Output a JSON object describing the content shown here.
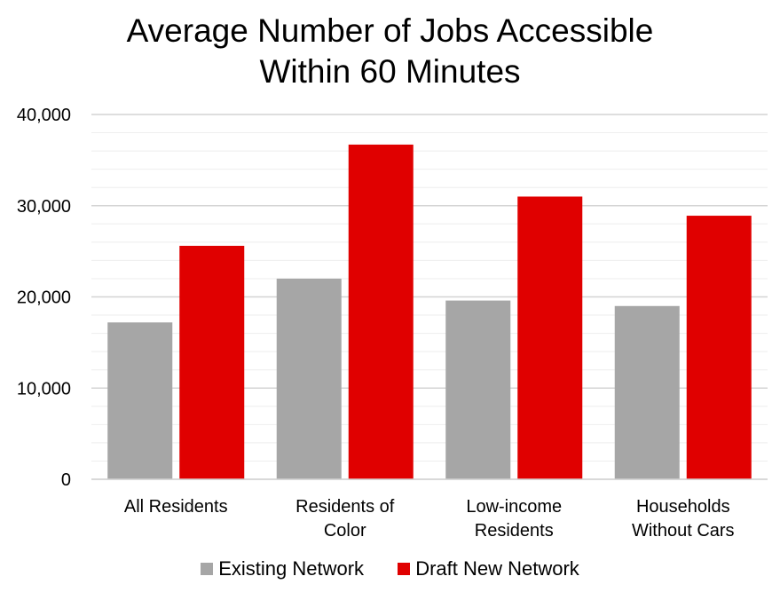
{
  "chart_data": {
    "type": "bar",
    "title": [
      "Average Number of Jobs Accessible",
      "Within 60 Minutes"
    ],
    "categories": [
      [
        "All Residents"
      ],
      [
        "Residents of",
        "Color"
      ],
      [
        "Low-income",
        "Residents"
      ],
      [
        "Households",
        "Without Cars"
      ]
    ],
    "series": [
      {
        "name": "Existing Network",
        "color": "#a6a6a6",
        "values": [
          17200,
          22000,
          19600,
          19000
        ]
      },
      {
        "name": "Draft New Network",
        "color": "#e00000",
        "values": [
          25600,
          36700,
          31000,
          28900
        ]
      }
    ],
    "ylim": [
      0,
      40000
    ],
    "yticks": [
      0,
      10000,
      20000,
      30000,
      40000
    ],
    "ytick_labels": [
      "0",
      "10,000",
      "20,000",
      "30,000",
      "40,000"
    ],
    "minor_gridlines": true,
    "legend_position": "bottom",
    "xlabel": "",
    "ylabel": ""
  }
}
